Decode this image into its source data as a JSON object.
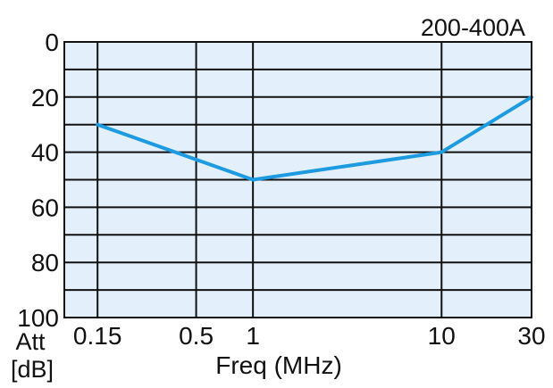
{
  "chart_data": {
    "type": "line",
    "title": "200-400A",
    "xlabel": "Freq (MHz)",
    "ylabel_lines": [
      "Att",
      "[dB]"
    ],
    "x_scale": "log",
    "xlim": [
      0.1,
      30
    ],
    "ylim": [
      0,
      100
    ],
    "y_inverted": true,
    "x_ticks": [
      {
        "value": 0.15,
        "label": "0.15"
      },
      {
        "value": 0.5,
        "label": "0.5"
      },
      {
        "value": 1,
        "label": "1"
      },
      {
        "value": 10,
        "label": "10"
      },
      {
        "value": 30,
        "label": "30"
      }
    ],
    "y_ticks": [
      {
        "value": 0,
        "label": "0"
      },
      {
        "value": 20,
        "label": "20"
      },
      {
        "value": 40,
        "label": "40"
      },
      {
        "value": 60,
        "label": "60"
      },
      {
        "value": 80,
        "label": "80"
      },
      {
        "value": 100,
        "label": "100"
      }
    ],
    "y_minor_gridlines": [
      10,
      30,
      50,
      70,
      90
    ],
    "grid": true,
    "series": [
      {
        "x": [
          0.15,
          1,
          10,
          30
        ],
        "y": [
          30,
          50,
          40,
          20
        ],
        "color": "#1e9be0"
      }
    ],
    "colors": {
      "plot_background": "#e3f0fb",
      "grid": "#111111",
      "line": "#1e9be0"
    }
  }
}
